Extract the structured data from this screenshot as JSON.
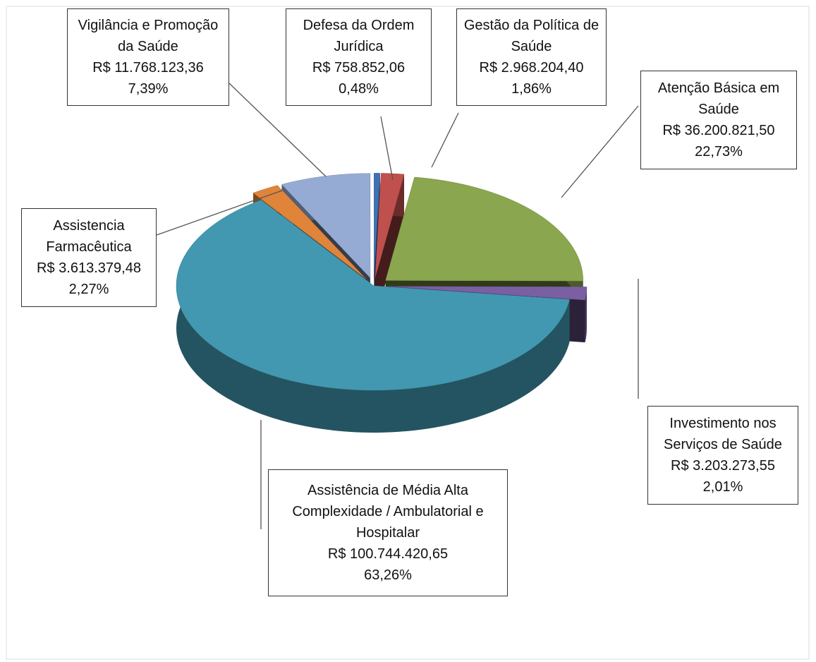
{
  "chart_data": {
    "type": "pie",
    "categories": [
      "Defesa da Ordem Jurídica",
      "Gestão da Política de Saúde",
      "Atenção Básica em Saúde",
      "Investimento nos Serviços de Saúde",
      "Assistência de Média  Alta Complexidade / Ambulatorial e Hospitalar",
      "Assistencia Farmacêutica",
      "Vigilância e Promoção da Saúde"
    ],
    "values": [
      0.48,
      1.86,
      22.73,
      2.01,
      63.26,
      2.27,
      7.39
    ],
    "value_labels": [
      "0,48%",
      "1,86%",
      "22,73%",
      "2,01%",
      "63,26%",
      "2,27%",
      "7,39%"
    ],
    "amounts": [
      758852.06,
      2968204.4,
      36200821.5,
      3203273.55,
      100744420.65,
      3613379.48,
      11768123.36
    ],
    "amount_labels": [
      "R$ 758.852,06",
      "R$ 2.968.204,40",
      "R$ 36.200.821,50",
      "R$ 3.203.273,55",
      "R$ 100.744.420,65",
      "R$ 3.613.379,48",
      "R$ 11.768.123,36"
    ],
    "colors": [
      "#3f72b5",
      "#c0504d",
      "#8aa64e",
      "#7b5fa3",
      "#4298b0",
      "#e0843a",
      "#96abd3"
    ]
  }
}
